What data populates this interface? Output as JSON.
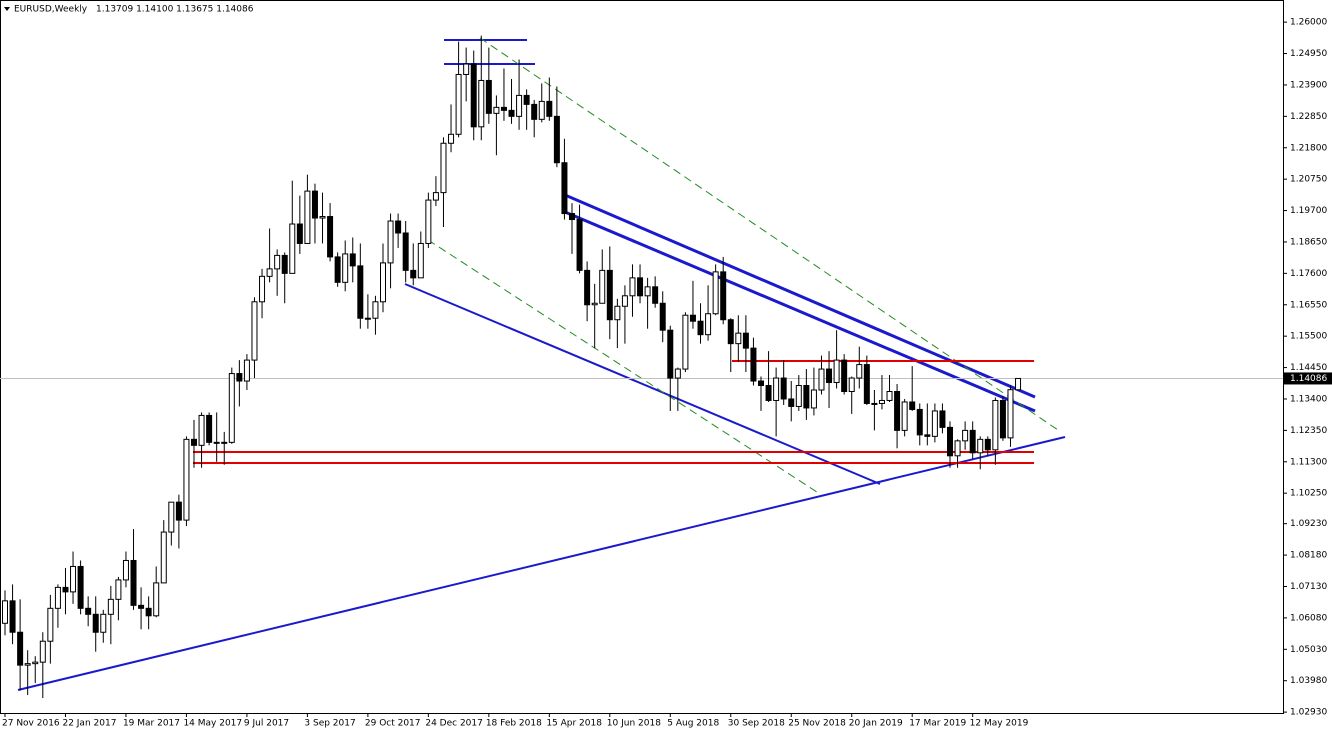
{
  "chart_data": {
    "type": "candlestick",
    "header": {
      "symbol": "EURUSD,Weekly",
      "ohlc": "1.13709 1.14100 1.13675 1.14086"
    },
    "current_price": {
      "value": 1.14086,
      "label": "1.14086"
    },
    "up_color": "#ffffff",
    "down_color": "#000000",
    "categories": [
      "27 Nov 2016",
      null,
      null,
      null,
      null,
      null,
      null,
      null,
      "22 Jan 2017",
      null,
      null,
      null,
      null,
      null,
      null,
      null,
      "19 Mar 2017",
      null,
      null,
      null,
      null,
      null,
      null,
      null,
      "14 May 2017",
      null,
      null,
      null,
      null,
      null,
      null,
      null,
      "9 Jul 2017",
      null,
      null,
      null,
      null,
      null,
      null,
      null,
      "3 Sep 2017",
      null,
      null,
      null,
      null,
      null,
      null,
      null,
      "29 Oct 2017",
      null,
      null,
      null,
      null,
      null,
      null,
      null,
      "24 Dec 2017",
      null,
      null,
      null,
      null,
      null,
      null,
      null,
      "18 Feb 2018",
      null,
      null,
      null,
      null,
      null,
      null,
      null,
      "15 Apr 2018",
      null,
      null,
      null,
      null,
      null,
      null,
      null,
      "10 Jun 2018",
      null,
      null,
      null,
      null,
      null,
      null,
      null,
      "5 Aug 2018",
      null,
      null,
      null,
      null,
      null,
      null,
      null,
      "30 Sep 2018",
      null,
      null,
      null,
      null,
      null,
      null,
      null,
      "25 Nov 2018",
      null,
      null,
      null,
      null,
      null,
      null,
      null,
      "20 Jan 2019",
      null,
      null,
      null,
      null,
      null,
      null,
      null,
      "17 Mar 2019",
      null,
      null,
      null,
      null,
      null,
      null,
      null,
      "12 May 2019",
      null,
      null,
      null,
      null,
      null,
      null
    ],
    "open": [
      1.059,
      1.0665,
      1.056,
      1.045,
      1.0455,
      1.046,
      1.053,
      1.064,
      1.071,
      1.0695,
      1.078,
      1.064,
      1.062,
      1.056,
      1.062,
      1.067,
      1.0735,
      1.08,
      1.065,
      1.064,
      1.0615,
      1.0725,
      1.0895,
      1.0995,
      1.0935,
      1.1205,
      1.1185,
      1.1285,
      1.1195,
      1.1195,
      1.1195,
      1.1425,
      1.14,
      1.147,
      1.1665,
      1.175,
      1.1775,
      1.182,
      1.176,
      1.1925,
      1.186,
      1.2035,
      1.1945,
      1.195,
      1.1815,
      1.173,
      1.1825,
      1.1785,
      1.161,
      1.161,
      1.1665,
      1.1795,
      1.1935,
      1.1895,
      1.177,
      1.1745,
      1.186,
      1.2005,
      1.203,
      1.2195,
      1.2225,
      1.2425,
      1.246,
      1.225,
      1.2405,
      1.2295,
      1.2315,
      1.2305,
      1.2285,
      1.2355,
      1.2325,
      1.2275,
      1.2335,
      1.2285,
      1.213,
      1.196,
      1.194,
      1.177,
      1.1655,
      1.166,
      1.177,
      1.1605,
      1.165,
      1.1685,
      1.1745,
      1.1685,
      1.1715,
      1.166,
      1.157,
      1.141,
      1.144,
      1.162,
      1.16,
      1.1555,
      1.1625,
      1.1765,
      1.1605,
      1.1525,
      1.156,
      1.151,
      1.14,
      1.1385,
      1.1335,
      1.141,
      1.134,
      1.1315,
      1.1385,
      1.131,
      1.137,
      1.144,
      1.1395,
      1.147,
      1.1365,
      1.141,
      1.1455,
      1.1325,
      1.1325,
      1.1335,
      1.1365,
      1.1235,
      1.133,
      1.1305,
      1.122,
      1.1215,
      1.13,
      1.1245,
      1.115,
      1.12,
      1.1235,
      1.116,
      1.1205,
      1.117,
      1.1335,
      1.121,
      1.13709
    ],
    "high": [
      1.07,
      1.072,
      1.067,
      1.05,
      1.048,
      1.056,
      1.0685,
      1.072,
      1.0775,
      1.083,
      1.08,
      1.068,
      1.068,
      1.0635,
      1.0715,
      1.0745,
      1.083,
      1.0905,
      1.071,
      1.068,
      1.078,
      1.0935,
      1.0995,
      1.102,
      1.1215,
      1.127,
      1.1295,
      1.1295,
      1.1295,
      1.123,
      1.1445,
      1.147,
      1.149,
      1.168,
      1.1775,
      1.191,
      1.184,
      1.183,
      1.207,
      1.202,
      1.209,
      1.206,
      1.203,
      1.1995,
      1.183,
      1.187,
      1.188,
      1.186,
      1.169,
      1.1685,
      1.186,
      1.196,
      1.196,
      1.1935,
      1.186,
      1.19,
      1.203,
      1.2085,
      1.2215,
      1.2325,
      1.2535,
      1.2515,
      1.2505,
      1.2555,
      1.2515,
      1.2355,
      1.2445,
      1.241,
      1.2475,
      1.2375,
      1.234,
      1.2395,
      1.2415,
      1.2385,
      1.221,
      1.1995,
      1.199,
      1.18,
      1.1725,
      1.184,
      1.185,
      1.1675,
      1.172,
      1.179,
      1.179,
      1.1745,
      1.175,
      1.17,
      1.1585,
      1.1445,
      1.163,
      1.1735,
      1.166,
      1.172,
      1.179,
      1.1815,
      1.161,
      1.162,
      1.162,
      1.1545,
      1.1415,
      1.15,
      1.1445,
      1.147,
      1.14,
      1.142,
      1.144,
      1.1445,
      1.1485,
      1.15,
      1.157,
      1.149,
      1.1415,
      1.1515,
      1.1485,
      1.137,
      1.142,
      1.142,
      1.139,
      1.134,
      1.145,
      1.1325,
      1.1325,
      1.1325,
      1.1325,
      1.1265,
      1.1205,
      1.1265,
      1.1265,
      1.1215,
      1.1215,
      1.1345,
      1.135,
      1.1385,
      1.141
    ],
    "low": [
      1.055,
      1.052,
      1.0365,
      1.035,
      1.039,
      1.034,
      1.0455,
      1.0575,
      1.062,
      1.0655,
      1.062,
      1.058,
      1.0495,
      1.0525,
      1.052,
      1.06,
      1.071,
      1.0635,
      1.057,
      1.057,
      1.061,
      1.0725,
      1.085,
      1.084,
      1.0915,
      1.111,
      1.111,
      1.1185,
      1.113,
      1.112,
      1.119,
      1.1315,
      1.137,
      1.141,
      1.161,
      1.173,
      1.1685,
      1.166,
      1.177,
      1.1825,
      1.186,
      1.186,
      1.186,
      1.18,
      1.1715,
      1.17,
      1.173,
      1.1575,
      1.1575,
      1.1555,
      1.163,
      1.171,
      1.1845,
      1.173,
      1.172,
      1.1755,
      1.1845,
      1.1985,
      1.1915,
      1.2165,
      1.2215,
      1.2335,
      1.2205,
      1.2205,
      1.226,
      1.2155,
      1.227,
      1.226,
      1.224,
      1.224,
      1.2215,
      1.2265,
      1.227,
      1.2115,
      1.194,
      1.1825,
      1.176,
      1.16,
      1.151,
      1.166,
      1.154,
      1.151,
      1.1525,
      1.1615,
      1.166,
      1.1575,
      1.1645,
      1.153,
      1.13,
      1.13,
      1.143,
      1.1575,
      1.1525,
      1.1535,
      1.162,
      1.159,
      1.143,
      1.1465,
      1.143,
      1.1385,
      1.13,
      1.133,
      1.1215,
      1.132,
      1.1265,
      1.13,
      1.127,
      1.1285,
      1.1355,
      1.131,
      1.1375,
      1.1355,
      1.129,
      1.1375,
      1.132,
      1.1235,
      1.1305,
      1.133,
      1.1175,
      1.1215,
      1.13,
      1.1185,
      1.1185,
      1.1195,
      1.1225,
      1.111,
      1.111,
      1.117,
      1.114,
      1.1105,
      1.115,
      1.112,
      1.12,
      1.118,
      1.13675
    ],
    "close": [
      1.0665,
      1.056,
      1.045,
      1.0455,
      1.046,
      1.053,
      1.064,
      1.071,
      1.0695,
      1.078,
      1.064,
      1.062,
      1.056,
      1.062,
      1.067,
      1.0735,
      1.08,
      1.065,
      1.064,
      1.0615,
      1.0725,
      1.0895,
      1.0995,
      1.0935,
      1.1205,
      1.1185,
      1.1285,
      1.1195,
      1.1195,
      1.1195,
      1.1425,
      1.14,
      1.147,
      1.1665,
      1.175,
      1.1775,
      1.182,
      1.176,
      1.1925,
      1.186,
      1.2035,
      1.1945,
      1.195,
      1.1815,
      1.173,
      1.1825,
      1.1785,
      1.161,
      1.161,
      1.1665,
      1.1795,
      1.1935,
      1.1895,
      1.177,
      1.1745,
      1.186,
      1.2005,
      1.203,
      1.2195,
      1.2225,
      1.2425,
      1.246,
      1.225,
      1.2405,
      1.2295,
      1.2315,
      1.2305,
      1.2285,
      1.2355,
      1.2325,
      1.2275,
      1.2335,
      1.2285,
      1.213,
      1.196,
      1.194,
      1.177,
      1.1655,
      1.166,
      1.177,
      1.1605,
      1.165,
      1.1685,
      1.1745,
      1.1685,
      1.1715,
      1.166,
      1.157,
      1.141,
      1.144,
      1.162,
      1.16,
      1.1555,
      1.1625,
      1.1765,
      1.1605,
      1.1525,
      1.156,
      1.151,
      1.14,
      1.1385,
      1.1335,
      1.141,
      1.134,
      1.1315,
      1.1385,
      1.131,
      1.137,
      1.144,
      1.1395,
      1.147,
      1.1365,
      1.141,
      1.1455,
      1.1325,
      1.1325,
      1.1335,
      1.1365,
      1.1235,
      1.133,
      1.1305,
      1.122,
      1.1215,
      1.13,
      1.1245,
      1.115,
      1.12,
      1.1235,
      1.116,
      1.1205,
      1.117,
      1.1335,
      1.121,
      1.1371,
      1.14086
    ],
    "ylim": [
      1.029,
      1.2664
    ],
    "yticks": [
      {
        "value": 1.26,
        "label": "1.26000"
      },
      {
        "value": 1.2495,
        "label": "1.24950"
      },
      {
        "value": 1.239,
        "label": "1.23900"
      },
      {
        "value": 1.2285,
        "label": "1.22850"
      },
      {
        "value": 1.218,
        "label": "1.21800"
      },
      {
        "value": 1.2075,
        "label": "1.20750"
      },
      {
        "value": 1.197,
        "label": "1.19700"
      },
      {
        "value": 1.1865,
        "label": "1.18650"
      },
      {
        "value": 1.176,
        "label": "1.17600"
      },
      {
        "value": 1.1655,
        "label": "1.16550"
      },
      {
        "value": 1.155,
        "label": "1.15500"
      },
      {
        "value": 1.1445,
        "label": "1.14450"
      },
      {
        "value": 1.134,
        "label": "1.13400"
      },
      {
        "value": 1.1235,
        "label": "1.12350"
      },
      {
        "value": 1.113,
        "label": "1.11300"
      },
      {
        "value": 1.1025,
        "label": "1.10250"
      },
      {
        "value": 1.0923,
        "label": "1.09230"
      },
      {
        "value": 1.0818,
        "label": "1.08180"
      },
      {
        "value": 1.0713,
        "label": "1.07130"
      },
      {
        "value": 1.0608,
        "label": "1.06080"
      },
      {
        "value": 1.0503,
        "label": "1.05030"
      },
      {
        "value": 1.0398,
        "label": "1.03980"
      },
      {
        "value": 1.0293,
        "label": "1.02930"
      }
    ]
  }
}
